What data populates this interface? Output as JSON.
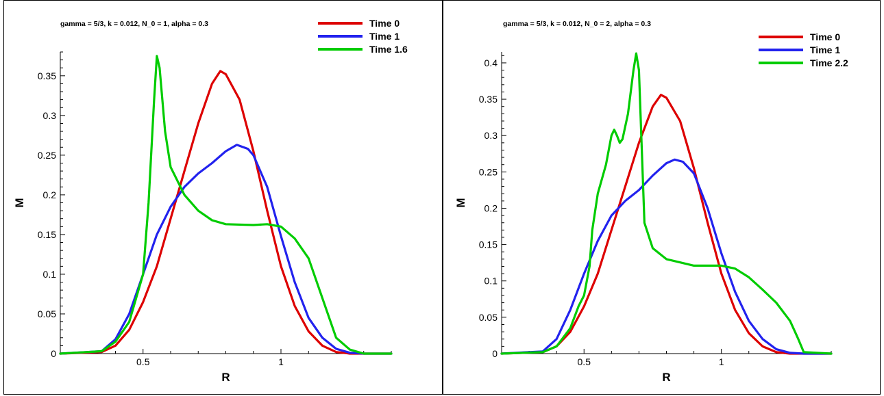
{
  "chart_data": [
    {
      "type": "line",
      "title": "gamma = 5/3, k = 0.012, N_0 = 1, alpha = 0.3",
      "xlabel": "R",
      "ylabel": "M",
      "xlim": [
        0.2,
        1.4
      ],
      "ylim": [
        0,
        0.38
      ],
      "xticks": [
        0.5,
        1
      ],
      "xtick_labels": [
        "0.5",
        "1"
      ],
      "yticks": [
        0,
        0.05,
        0.1,
        0.15,
        0.2,
        0.25,
        0.3,
        0.35
      ],
      "ytick_labels": [
        "0",
        "0.05",
        "0.1",
        "0.15",
        "0.2",
        "0.25",
        "0.3",
        "0.35"
      ],
      "grid": false,
      "legend_position": "top-right",
      "series": [
        {
          "name": "Time 0",
          "color": "#dd0000",
          "x": [
            0.2,
            0.35,
            0.4,
            0.45,
            0.5,
            0.55,
            0.6,
            0.65,
            0.7,
            0.75,
            0.78,
            0.8,
            0.85,
            0.9,
            0.95,
            1.0,
            1.05,
            1.1,
            1.15,
            1.2,
            1.25,
            1.3,
            1.4
          ],
          "y": [
            0,
            0.002,
            0.01,
            0.03,
            0.065,
            0.11,
            0.17,
            0.23,
            0.29,
            0.34,
            0.356,
            0.352,
            0.32,
            0.255,
            0.18,
            0.11,
            0.06,
            0.028,
            0.01,
            0.002,
            0,
            0,
            0
          ]
        },
        {
          "name": "Time 1",
          "color": "#2222ee",
          "x": [
            0.2,
            0.35,
            0.4,
            0.45,
            0.5,
            0.55,
            0.6,
            0.65,
            0.7,
            0.75,
            0.8,
            0.84,
            0.88,
            0.9,
            0.95,
            1.0,
            1.05,
            1.1,
            1.15,
            1.2,
            1.25,
            1.3,
            1.4
          ],
          "y": [
            0,
            0.003,
            0.018,
            0.05,
            0.1,
            0.15,
            0.185,
            0.21,
            0.227,
            0.24,
            0.255,
            0.263,
            0.258,
            0.25,
            0.21,
            0.148,
            0.09,
            0.045,
            0.02,
            0.006,
            0.001,
            0,
            0
          ]
        },
        {
          "name": "Time 1.6",
          "color": "#00cc00",
          "x": [
            0.2,
            0.35,
            0.4,
            0.45,
            0.5,
            0.52,
            0.54,
            0.55,
            0.56,
            0.58,
            0.6,
            0.65,
            0.7,
            0.75,
            0.8,
            0.9,
            0.95,
            1.0,
            1.05,
            1.1,
            1.15,
            1.2,
            1.25,
            1.3,
            1.4
          ],
          "y": [
            0,
            0.003,
            0.015,
            0.04,
            0.1,
            0.19,
            0.32,
            0.375,
            0.36,
            0.28,
            0.235,
            0.2,
            0.18,
            0.168,
            0.163,
            0.162,
            0.163,
            0.16,
            0.145,
            0.12,
            0.07,
            0.02,
            0.005,
            0,
            0
          ]
        }
      ]
    },
    {
      "type": "line",
      "title": "gamma = 5/3, k = 0.012, N_0 = 2, alpha = 0.3",
      "xlabel": "R",
      "ylabel": "M",
      "xlim": [
        0.2,
        1.4
      ],
      "ylim": [
        0,
        0.415
      ],
      "xticks": [
        0.5,
        1
      ],
      "xtick_labels": [
        "0.5",
        "1"
      ],
      "yticks": [
        0,
        0.05,
        0.1,
        0.15,
        0.2,
        0.25,
        0.3,
        0.35,
        0.4
      ],
      "ytick_labels": [
        "0",
        "0.05",
        "0.1",
        "0.15",
        "0.2",
        "0.25",
        "0.3",
        "0.35",
        "0.4"
      ],
      "grid": false,
      "legend_position": "top-right",
      "series": [
        {
          "name": "Time 0",
          "color": "#dd0000",
          "x": [
            0.2,
            0.35,
            0.4,
            0.45,
            0.5,
            0.55,
            0.6,
            0.65,
            0.7,
            0.75,
            0.78,
            0.8,
            0.85,
            0.9,
            0.95,
            1.0,
            1.05,
            1.1,
            1.15,
            1.2,
            1.25,
            1.3,
            1.4
          ],
          "y": [
            0,
            0.002,
            0.01,
            0.03,
            0.065,
            0.11,
            0.17,
            0.23,
            0.29,
            0.34,
            0.356,
            0.352,
            0.32,
            0.255,
            0.18,
            0.11,
            0.06,
            0.028,
            0.01,
            0.002,
            0,
            0,
            0
          ]
        },
        {
          "name": "Time 1",
          "color": "#2222ee",
          "x": [
            0.2,
            0.35,
            0.4,
            0.45,
            0.5,
            0.55,
            0.6,
            0.65,
            0.7,
            0.75,
            0.8,
            0.83,
            0.86,
            0.9,
            0.95,
            1.0,
            1.05,
            1.1,
            1.15,
            1.2,
            1.25,
            1.3,
            1.4
          ],
          "y": [
            0,
            0.003,
            0.02,
            0.06,
            0.11,
            0.155,
            0.19,
            0.21,
            0.225,
            0.245,
            0.262,
            0.267,
            0.264,
            0.248,
            0.2,
            0.138,
            0.085,
            0.045,
            0.02,
            0.006,
            0.001,
            0,
            0
          ]
        },
        {
          "name": "Time 2.2",
          "color": "#00cc00",
          "x": [
            0.2,
            0.35,
            0.4,
            0.45,
            0.48,
            0.5,
            0.52,
            0.53,
            0.55,
            0.58,
            0.6,
            0.61,
            0.62,
            0.63,
            0.64,
            0.66,
            0.68,
            0.69,
            0.7,
            0.72,
            0.75,
            0.8,
            0.9,
            0.95,
            1.0,
            1.05,
            1.1,
            1.15,
            1.2,
            1.25,
            1.28,
            1.3,
            1.4
          ],
          "y": [
            0,
            0.002,
            0.01,
            0.035,
            0.065,
            0.08,
            0.12,
            0.17,
            0.22,
            0.26,
            0.3,
            0.308,
            0.3,
            0.29,
            0.295,
            0.33,
            0.39,
            0.413,
            0.39,
            0.18,
            0.145,
            0.13,
            0.121,
            0.121,
            0.121,
            0.117,
            0.105,
            0.088,
            0.07,
            0.045,
            0.02,
            0.002,
            0
          ]
        }
      ]
    }
  ]
}
